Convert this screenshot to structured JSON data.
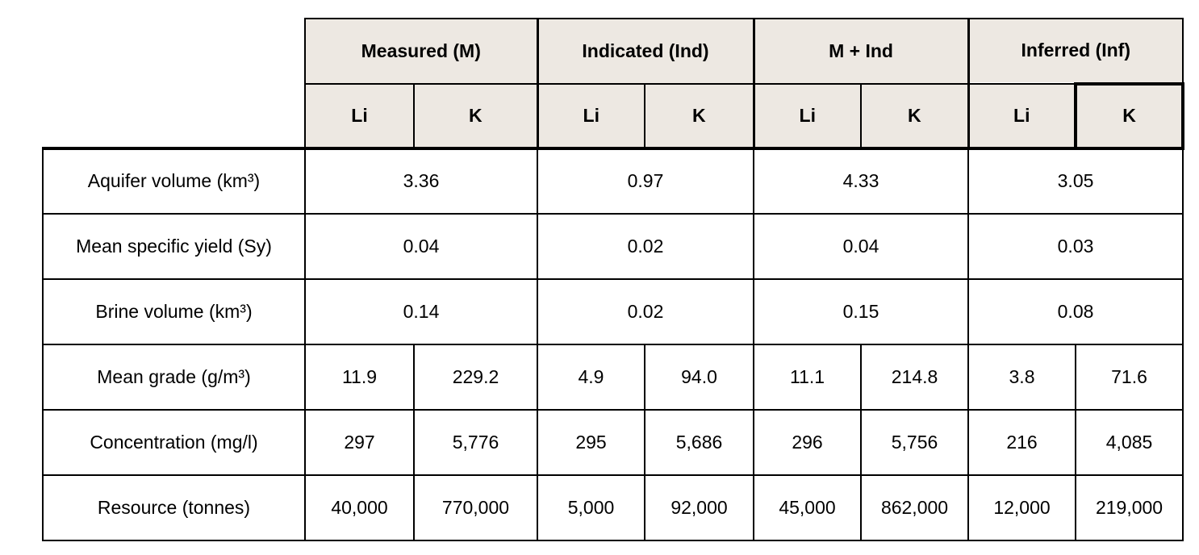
{
  "table": {
    "header": {
      "groups": [
        {
          "label": "Measured (M)",
          "li": "Li",
          "k": "K"
        },
        {
          "label": "Indicated (Ind)",
          "li": "Li",
          "k": "K"
        },
        {
          "label": "M + Ind",
          "li": "Li",
          "k": "K"
        },
        {
          "label": "Inferred (Inf)",
          "li": "Li",
          "k": "K"
        }
      ]
    },
    "rows": [
      {
        "label": "Aquifer volume (km³)",
        "merged": true,
        "values": [
          "3.36",
          "0.97",
          "4.33",
          "3.05"
        ]
      },
      {
        "label": "Mean specific yield (Sy)",
        "merged": true,
        "values": [
          "0.04",
          "0.02",
          "0.04",
          "0.03"
        ]
      },
      {
        "label": "Brine volume (km³)",
        "merged": true,
        "values": [
          "0.14",
          "0.02",
          "0.15",
          "0.08"
        ]
      },
      {
        "label": "Mean grade (g/m³)",
        "merged": false,
        "values": [
          "11.9",
          "229.2",
          "4.9",
          "94.0",
          "11.1",
          "214.8",
          "3.8",
          "71.6"
        ]
      },
      {
        "label": "Concentration (mg/l)",
        "merged": false,
        "values": [
          "297",
          "5,776",
          "295",
          "5,686",
          "296",
          "5,756",
          "216",
          "4,085"
        ]
      },
      {
        "label": "Resource (tonnes)",
        "merged": false,
        "values": [
          "40,000",
          "770,000",
          "5,000",
          "92,000",
          "45,000",
          "862,000",
          "12,000",
          "219,000"
        ]
      }
    ],
    "colors": {
      "header_bg": "#EDE8E2",
      "border": "#000000",
      "text": "#000000",
      "page_bg": "#FFFFFF"
    }
  }
}
